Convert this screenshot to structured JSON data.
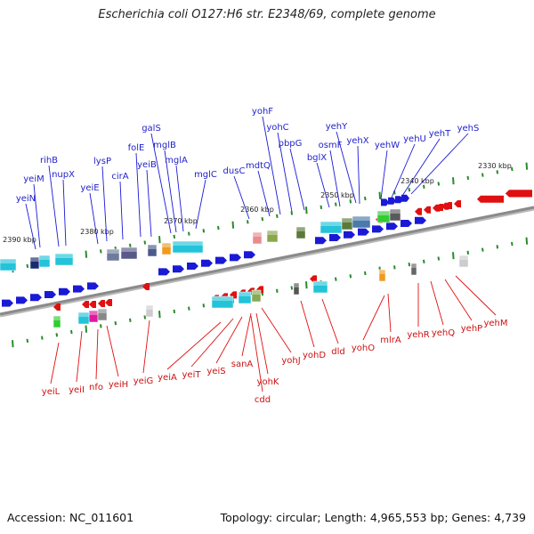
{
  "title": "Escherichia coli O127:H6 str. E2348/69, complete genome",
  "footer": {
    "accession": "Accession: NC_011601",
    "summary": "Topology: circular; Length: 4,965,553 bp; Genes: 4,739"
  },
  "colors": {
    "forward": "#1a1ad6",
    "reverse": "#e01010",
    "forward_label": "#2222cc",
    "reverse_label": "#cc1111",
    "backbone": "#8a8a8a",
    "tick": "#2a8a2a"
  },
  "kbp_marks": [
    "2390 kbp",
    "2380 kbp",
    "2370 kbp",
    "2360 kbp",
    "2350 kbp",
    "2340 kbp",
    "2330 kbp"
  ],
  "forward_genes": [
    "yeiN",
    "yeiM",
    "rihB",
    "nupX",
    "yeiE",
    "lysP",
    "cirA",
    "folE",
    "yeiB",
    "galS",
    "mglB",
    "mglA",
    "mglC",
    "dusC",
    "mdtQ",
    "yohF",
    "yohC",
    "pbpG",
    "bglX",
    "osmF",
    "yehY",
    "yehX",
    "yehW",
    "yehU",
    "yehT",
    "yehS"
  ],
  "reverse_genes": [
    "yeiL",
    "yeiI",
    "nfo",
    "yeiH",
    "yeiG",
    "yeiA",
    "yeiT",
    "yeiS",
    "sanA",
    "cdd",
    "yohK",
    "yohJ",
    "yohD",
    "dld",
    "yohO",
    "mlrA",
    "yehR",
    "yehQ",
    "yehP",
    "yehM"
  ]
}
